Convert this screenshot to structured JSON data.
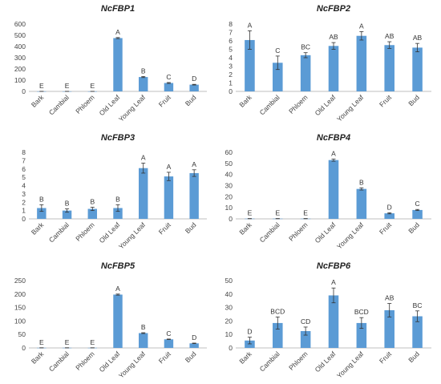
{
  "chart_data": [
    {
      "type": "bar",
      "title": "NcFBP1",
      "categories": [
        "Bark",
        "Cambial",
        "Phloem",
        "Old Leaf",
        "Young Leaf",
        "Fruit",
        "Bud"
      ],
      "values": [
        0.5,
        0.5,
        0.5,
        475,
        128,
        75,
        60
      ],
      "errors": [
        0.3,
        0.3,
        0.3,
        5,
        5,
        4,
        3
      ],
      "labels": [
        "E",
        "E",
        "E",
        "A",
        "B",
        "C",
        "D"
      ],
      "ylim": [
        0,
        600
      ],
      "yticks": [
        0,
        100,
        200,
        300,
        400,
        500,
        600
      ],
      "bar_color": "#5b9bd5",
      "xlabel": "",
      "ylabel": ""
    },
    {
      "type": "bar",
      "title": "NcFBP2",
      "categories": [
        "Bark",
        "Cambial",
        "Phloem",
        "Old Leaf",
        "Young Leaf",
        "Fruit",
        "Bud"
      ],
      "values": [
        6.1,
        3.4,
        4.3,
        5.4,
        6.6,
        5.5,
        5.2
      ],
      "errors": [
        1.1,
        0.8,
        0.3,
        0.4,
        0.5,
        0.4,
        0.5
      ],
      "labels": [
        "A",
        "C",
        "BC",
        "AB",
        "A",
        "AB",
        "AB"
      ],
      "ylim": [
        0,
        8
      ],
      "yticks": [
        0,
        1,
        2,
        3,
        4,
        5,
        6,
        7,
        8
      ],
      "bar_color": "#5b9bd5",
      "xlabel": "",
      "ylabel": ""
    },
    {
      "type": "bar",
      "title": "NcFBP3",
      "categories": [
        "Bark",
        "Cambial",
        "Phloem",
        "Old Leaf",
        "Young Leaf",
        "Fruit",
        "Bud"
      ],
      "values": [
        1.3,
        1.0,
        1.2,
        1.3,
        6.1,
        5.1,
        5.5
      ],
      "errors": [
        0.4,
        0.2,
        0.2,
        0.4,
        0.6,
        0.5,
        0.4
      ],
      "labels": [
        "B",
        "B",
        "B",
        "B",
        "A",
        "A",
        "A"
      ],
      "ylim": [
        0,
        8
      ],
      "yticks": [
        0,
        1,
        2,
        3,
        4,
        5,
        6,
        7,
        8
      ],
      "bar_color": "#5b9bd5",
      "xlabel": "",
      "ylabel": ""
    },
    {
      "type": "bar",
      "title": "NcFBP4",
      "categories": [
        "Bark",
        "Cambial",
        "Phloem",
        "Old Leaf",
        "Young Leaf",
        "Fruit",
        "Bud"
      ],
      "values": [
        0.2,
        0.2,
        0.2,
        53,
        27,
        5,
        8
      ],
      "errors": [
        0.1,
        0.1,
        0.1,
        1,
        1,
        0.5,
        0.5
      ],
      "labels": [
        "E",
        "E",
        "E",
        "A",
        "B",
        "D",
        "C"
      ],
      "ylim": [
        0,
        60
      ],
      "yticks": [
        0,
        10,
        20,
        30,
        40,
        50,
        60
      ],
      "bar_color": "#5b9bd5",
      "xlabel": "",
      "ylabel": ""
    },
    {
      "type": "bar",
      "title": "NcFBP5",
      "categories": [
        "Bark",
        "Cambial",
        "Phloem",
        "Old Leaf",
        "Young Leaf",
        "Fruit",
        "Bud"
      ],
      "values": [
        0.5,
        0.5,
        0.5,
        198,
        55,
        32,
        17
      ],
      "errors": [
        0.2,
        0.2,
        0.2,
        2,
        1.5,
        1,
        1
      ],
      "labels": [
        "E",
        "E",
        "E",
        "A",
        "B",
        "C",
        "D"
      ],
      "ylim": [
        0,
        250
      ],
      "yticks": [
        0,
        50,
        100,
        150,
        200,
        250
      ],
      "bar_color": "#5b9bd5",
      "xlabel": "",
      "ylabel": ""
    },
    {
      "type": "bar",
      "title": "NcFBP6",
      "categories": [
        "Bark",
        "Cambial",
        "Phloem",
        "Old Leaf",
        "Young Leaf",
        "Fruit",
        "Bud"
      ],
      "values": [
        5.5,
        18.5,
        12.5,
        39,
        18.5,
        28,
        23.5
      ],
      "errors": [
        2.5,
        4.5,
        3,
        5.5,
        4,
        5,
        4
      ],
      "labels": [
        "D",
        "BCD",
        "CD",
        "A",
        "BCD",
        "AB",
        "BC"
      ],
      "ylim": [
        0,
        50
      ],
      "yticks": [
        0,
        10,
        20,
        30,
        40,
        50
      ],
      "bar_color": "#5b9bd5",
      "xlabel": "",
      "ylabel": ""
    }
  ]
}
